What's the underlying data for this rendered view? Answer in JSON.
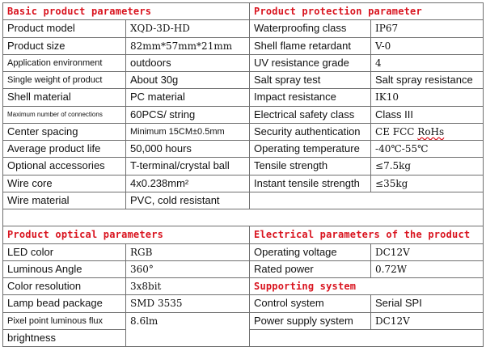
{
  "basic": {
    "title": "Basic product parameters",
    "rows": [
      {
        "label": "Product model",
        "value": "XQD-3D-HD"
      },
      {
        "label": "Product size",
        "value": "82mm*57mm*21mm"
      },
      {
        "label": "Application environment",
        "value": "outdoors"
      },
      {
        "label": "Single weight of product",
        "value": "About 30g"
      },
      {
        "label": "Shell material",
        "value": "PC material"
      },
      {
        "label": "Maximum number of connections",
        "value": "60PCS/ string"
      },
      {
        "label": "Center spacing",
        "value": "Minimum 15CM±0.5mm"
      },
      {
        "label": "Average product life",
        "value": "50,000 hours"
      },
      {
        "label": "Optional accessories",
        "value": "T-terminal/crystal ball"
      },
      {
        "label": "Wire core",
        "value": "4x0.238mm²"
      },
      {
        "label": "Wire material",
        "value": "PVC, cold resistant"
      }
    ]
  },
  "protection": {
    "title": "Product protection parameter",
    "rows": [
      {
        "label": "Waterproofing class",
        "value": "IP67"
      },
      {
        "label": "Shell flame retardant",
        "value": "V-0"
      },
      {
        "label": "UV resistance grade",
        "value": "4"
      },
      {
        "label": "Salt spray test",
        "value": "Salt spray resistance"
      },
      {
        "label": "Impact resistance",
        "value": "IK10"
      },
      {
        "label": "Electrical safety class",
        "value": "Class III"
      },
      {
        "label": "Security authentication",
        "value_prefix": "CE FCC ",
        "value_underlined": "RoHs"
      },
      {
        "label": "Operating temperature",
        "value": "-40℃-55℃"
      },
      {
        "label": "Tensile strength",
        "value": "≤7.5kg"
      },
      {
        "label": "Instant tensile strength",
        "value": "≤35kg"
      }
    ]
  },
  "optical": {
    "title": "Product optical parameters",
    "rows": [
      {
        "label": "LED color",
        "value": "RGB"
      },
      {
        "label": "Luminous Angle",
        "value": "360°"
      },
      {
        "label": "Color resolution",
        "value": "3x8bit"
      },
      {
        "label": "Lamp bead package",
        "value": "SMD 3535"
      },
      {
        "label": "Pixel point luminous flux",
        "value": "8.6lm"
      },
      {
        "label": "brightness",
        "value": ""
      }
    ]
  },
  "electrical": {
    "title": "Electrical parameters of the product",
    "rows": [
      {
        "label": "Operating voltage",
        "value": "DC12V"
      },
      {
        "label": "Rated power",
        "value": "0.72W"
      }
    ]
  },
  "supporting": {
    "title": "Supporting system",
    "rows": [
      {
        "label": "Control system",
        "value": "Serial SPI"
      },
      {
        "label": "Power supply system",
        "value": "DC12V"
      }
    ]
  },
  "colors": {
    "header_red": "#d9141f",
    "border": "#6f6f6f"
  }
}
